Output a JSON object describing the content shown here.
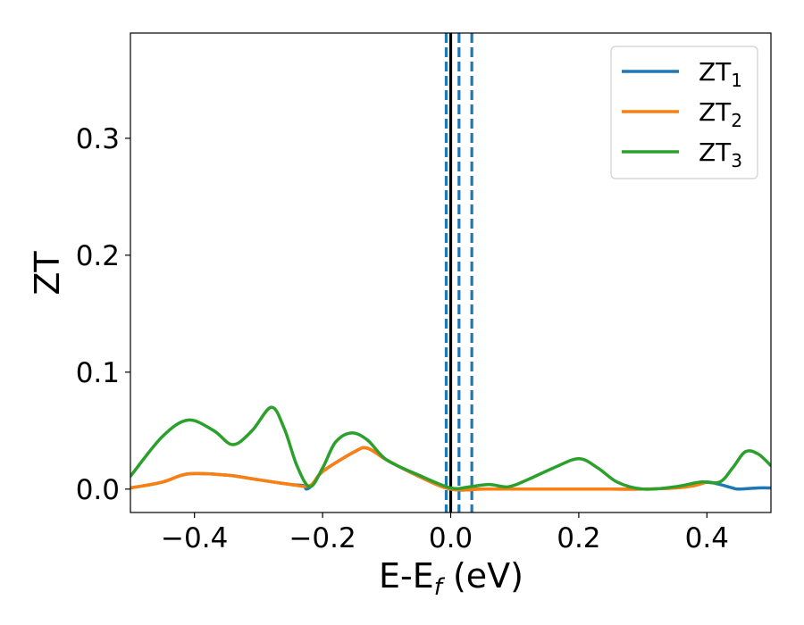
{
  "chart_data": {
    "type": "line",
    "title": "",
    "xlabel": {
      "main": "E-E",
      "sub": "f",
      "suffix": " (eV)"
    },
    "ylabel": "ZT",
    "xlim": [
      -0.5,
      0.5
    ],
    "ylim": [
      -0.02,
      0.39
    ],
    "x_ticks": [
      -0.4,
      -0.2,
      0.0,
      0.2,
      0.4
    ],
    "x_tick_labels": [
      "−0.4",
      "−0.2",
      "0.0",
      "0.2",
      "0.4"
    ],
    "y_ticks": [
      0.0,
      0.1,
      0.2,
      0.3
    ],
    "y_tick_labels": [
      "0.0",
      "0.1",
      "0.2",
      "0.3"
    ],
    "grid": false,
    "legend_position": "top-right",
    "vertical_lines": [
      {
        "x": 0.0,
        "style": "solid",
        "color": "#000000"
      },
      {
        "x": -0.007,
        "style": "dashed",
        "color": "#1f77b4"
      },
      {
        "x": 0.013,
        "style": "dashed",
        "color": "#1f77b4"
      },
      {
        "x": 0.033,
        "style": "dashed",
        "color": "#1f77b4"
      }
    ],
    "series": [
      {
        "name": "ZT",
        "sub": "1",
        "color": "#1f77b4",
        "x": [
          -0.5,
          -0.45,
          -0.41,
          -0.35,
          -0.3,
          -0.25,
          -0.23,
          -0.225,
          -0.215,
          -0.2,
          -0.15,
          -0.13,
          -0.1,
          -0.05,
          0.0,
          0.05,
          0.1,
          0.15,
          0.2,
          0.25,
          0.3,
          0.35,
          0.38,
          0.4,
          0.42,
          0.44,
          0.45,
          0.48,
          0.5
        ],
        "y": [
          0.001,
          0.006,
          0.013,
          0.012,
          0.008,
          0.004,
          0.003,
          0.0,
          0.004,
          0.015,
          0.032,
          0.035,
          0.025,
          0.011,
          0.0,
          0.0,
          0.0,
          0.0,
          0.0,
          0.0,
          0.0,
          0.001,
          0.003,
          0.006,
          0.004,
          0.001,
          0.0,
          0.001,
          0.001
        ]
      },
      {
        "name": "ZT",
        "sub": "2",
        "color": "#ff7f0e",
        "x": [
          -0.5,
          -0.45,
          -0.41,
          -0.35,
          -0.3,
          -0.25,
          -0.22,
          -0.2,
          -0.15,
          -0.13,
          -0.1,
          -0.05,
          0.0,
          0.05,
          0.1,
          0.15,
          0.2,
          0.25,
          0.3,
          0.35,
          0.38,
          0.4
        ],
        "y": [
          0.001,
          0.006,
          0.013,
          0.012,
          0.008,
          0.004,
          0.003,
          0.015,
          0.032,
          0.035,
          0.025,
          0.011,
          0.0,
          0.0,
          0.0,
          0.0,
          0.0,
          0.0,
          0.0,
          0.001,
          0.003,
          0.006
        ]
      },
      {
        "name": "ZT",
        "sub": "3",
        "color": "#2ca02c",
        "x": [
          -0.5,
          -0.45,
          -0.41,
          -0.37,
          -0.34,
          -0.31,
          -0.28,
          -0.26,
          -0.24,
          -0.22,
          -0.2,
          -0.18,
          -0.155,
          -0.13,
          -0.1,
          -0.05,
          0.0,
          0.03,
          0.06,
          0.09,
          0.12,
          0.16,
          0.2,
          0.23,
          0.26,
          0.3,
          0.35,
          0.39,
          0.42,
          0.44,
          0.46,
          0.48,
          0.5
        ],
        "y": [
          0.011,
          0.045,
          0.059,
          0.05,
          0.038,
          0.05,
          0.07,
          0.052,
          0.02,
          0.002,
          0.018,
          0.04,
          0.048,
          0.042,
          0.025,
          0.012,
          0.001,
          0.002,
          0.004,
          0.002,
          0.008,
          0.018,
          0.026,
          0.018,
          0.006,
          0.0,
          0.002,
          0.006,
          0.006,
          0.018,
          0.032,
          0.03,
          0.02
        ]
      }
    ]
  }
}
